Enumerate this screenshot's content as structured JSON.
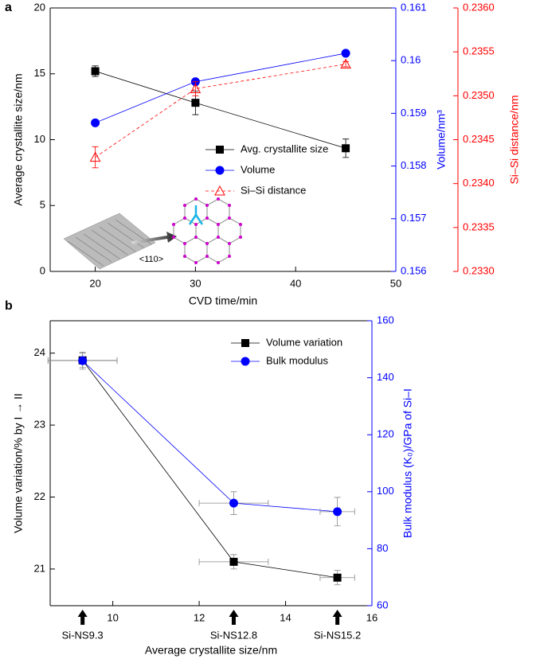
{
  "chart_data": [
    {
      "type": "line",
      "panel_label": "a",
      "xlabel": "CVD time/min",
      "ylabel": "Average crystallite size/nm",
      "y2label": "Volume/nm³",
      "y3label": "Si–Si distance/nm",
      "xlim": [
        15.5,
        50
      ],
      "xticks": [
        20,
        30,
        40,
        50
      ],
      "ylim": [
        0,
        20
      ],
      "yticks": [
        0,
        5,
        10,
        15,
        20
      ],
      "y2lim": [
        0.156,
        0.161
      ],
      "y2ticks": [
        0.156,
        0.157,
        0.158,
        0.159,
        0.16,
        0.161
      ],
      "y3lim": [
        0.233,
        0.236
      ],
      "y3ticks": [
        {
          "value": 0.233,
          "label": "0.2330"
        },
        0.2335,
        {
          "value": 0.234,
          "label": "0.2340"
        },
        0.2345,
        {
          "value": 0.235,
          "label": "0.2350"
        },
        0.2355,
        {
          "value": 0.236,
          "label": "0.2360"
        }
      ],
      "legend": "lower right",
      "annotations": [
        {
          "text": "<110>"
        }
      ],
      "series": [
        {
          "name": "Avg. crystallite size",
          "color": "#000000",
          "marker": "square",
          "dash": false,
          "axis": "y",
          "x": [
            20,
            30,
            45
          ],
          "values": [
            15.2,
            12.8,
            9.35
          ],
          "errors": [
            0.4,
            0.9,
            0.7
          ]
        },
        {
          "name": "Volume",
          "color": "#0000ff",
          "marker": "circle",
          "dash": false,
          "axis": "y2",
          "x": [
            20,
            30,
            45
          ],
          "values": [
            0.15882,
            0.1596,
            0.16014
          ],
          "errors": [
            3e-05,
            3e-05,
            5e-05
          ]
        },
        {
          "name": "Si–Si distance",
          "color": "#ff0000",
          "marker": "triangle",
          "dash": true,
          "axis": "y3",
          "x": [
            20,
            30,
            45
          ],
          "values": [
            0.2343,
            0.23508,
            0.23536
          ],
          "errors": [
            0.00012,
            8e-05,
            3e-05
          ]
        }
      ]
    },
    {
      "type": "line",
      "panel_label": "b",
      "xlabel": "Average crystallite size/nm",
      "ylabel": "Volume variation/% by I → II",
      "y2label": "Bulk modulus (K₀)/GPa of Si–I",
      "xlim": [
        8.55,
        16
      ],
      "xticks": [
        10,
        12,
        14,
        16
      ],
      "ylim": [
        20.49,
        24.45
      ],
      "yticks": [
        21,
        22,
        23,
        24
      ],
      "y2lim": [
        60,
        160
      ],
      "y2ticks": [
        60,
        80,
        100,
        120,
        140,
        160
      ],
      "legend": "upper right",
      "annotations": [
        {
          "text": "Si-NS9.3",
          "x": 9.3
        },
        {
          "text": "Si-NS12.8",
          "x": 12.8
        },
        {
          "text": "Si-NS15.2",
          "x": 15.2
        }
      ],
      "series": [
        {
          "name": "Volume variation",
          "color": "#000000",
          "marker": "square",
          "dash": false,
          "axis": "y",
          "x": [
            9.3,
            12.8,
            15.2
          ],
          "values": [
            23.9,
            21.1,
            20.88
          ],
          "errors": [
            0.1,
            0.1,
            0.1
          ],
          "xerrors": [
            0.8,
            0.8,
            0.4
          ]
        },
        {
          "name": "Bulk modulus",
          "color": "#0000ff",
          "marker": "circle",
          "dash": false,
          "axis": "y2",
          "x": [
            9.3,
            12.8,
            15.2
          ],
          "values": [
            146,
            96,
            93
          ],
          "errors": [
            3,
            4,
            5
          ],
          "xerrors": [
            0.8,
            0.8,
            0.4
          ]
        }
      ]
    }
  ]
}
